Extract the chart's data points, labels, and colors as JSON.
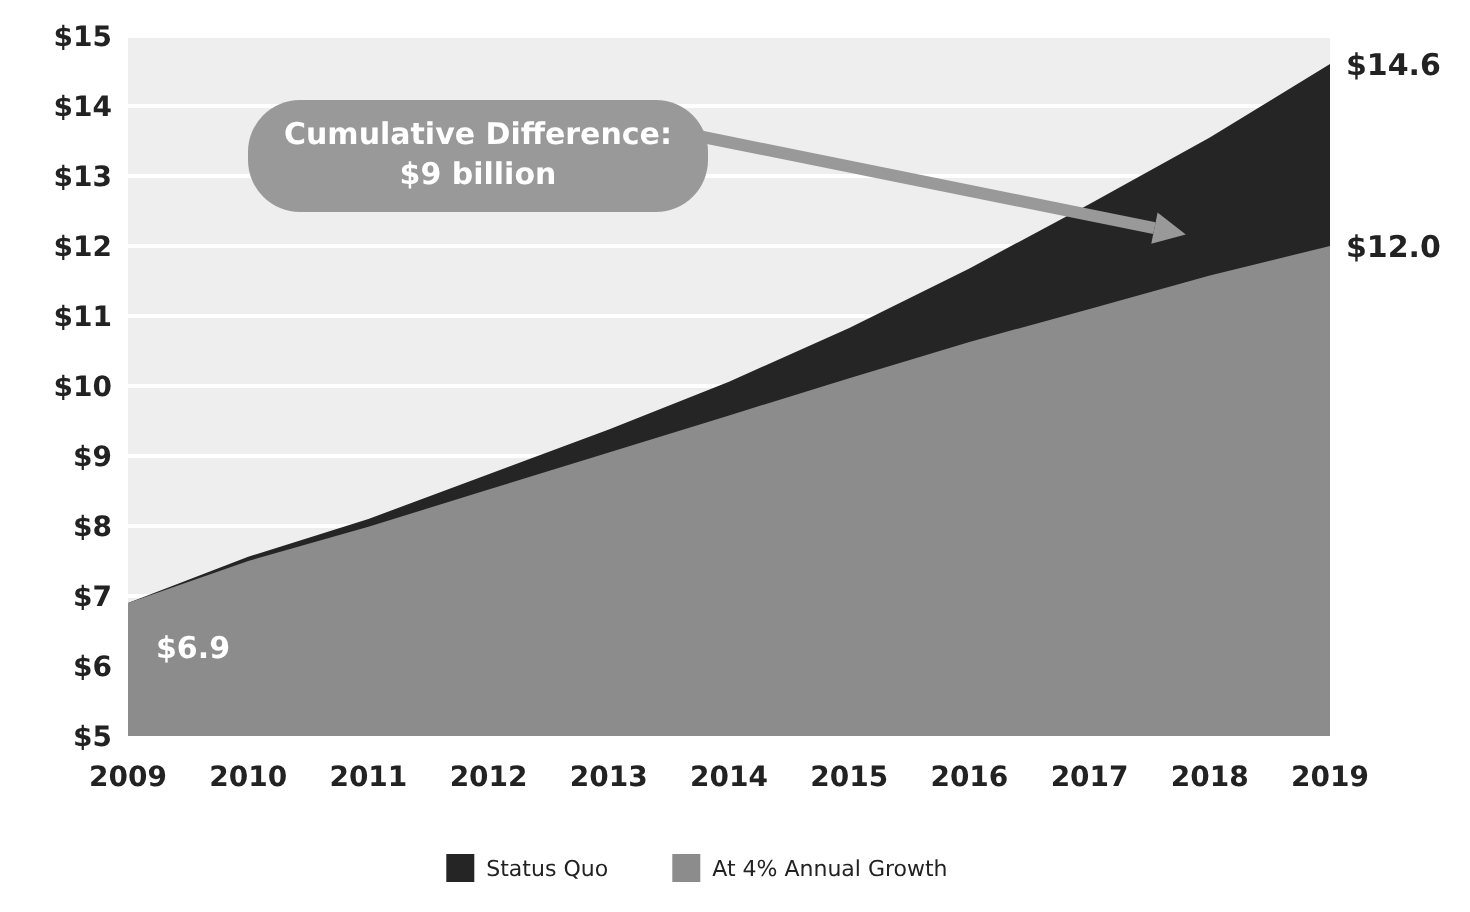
{
  "chart_data": {
    "type": "area",
    "x": [
      2009,
      2010,
      2011,
      2012,
      2013,
      2014,
      2015,
      2016,
      2017,
      2018,
      2019
    ],
    "series": [
      {
        "name": "Status Quo",
        "color": "#252525",
        "values": [
          6.9,
          7.56,
          8.1,
          8.74,
          9.38,
          10.06,
          10.83,
          11.68,
          12.6,
          13.55,
          14.6
        ],
        "value_labels": [
          null,
          null,
          null,
          null,
          null,
          null,
          null,
          null,
          null,
          null,
          "$14.6"
        ]
      },
      {
        "name": "At 4% Annual Growth",
        "color": "#8c8c8c",
        "values": [
          6.9,
          7.5,
          7.99,
          8.52,
          9.05,
          9.58,
          10.11,
          10.63,
          11.1,
          11.58,
          12.0
        ],
        "value_labels": [
          "$6.9",
          null,
          null,
          null,
          null,
          null,
          null,
          null,
          null,
          null,
          "$12.0"
        ]
      }
    ],
    "xlim": [
      2009,
      2019
    ],
    "xticks": [
      2009,
      2010,
      2011,
      2012,
      2013,
      2014,
      2015,
      2016,
      2017,
      2018,
      2019
    ],
    "ylim": [
      5,
      15
    ],
    "yticks": [
      {
        "value": 5,
        "label": "$5"
      },
      {
        "value": 6,
        "label": "$6"
      },
      {
        "value": 7,
        "label": "$7"
      },
      {
        "value": 8,
        "label": "$8"
      },
      {
        "value": 9,
        "label": "$9"
      },
      {
        "value": 10,
        "label": "$10"
      },
      {
        "value": 11,
        "label": "$11"
      },
      {
        "value": 12,
        "label": "$12"
      },
      {
        "value": 13,
        "label": "$13"
      },
      {
        "value": 14,
        "label": "$14"
      },
      {
        "value": 15,
        "label": "$15"
      }
    ],
    "annotations": [
      "Cumulative Difference:\n$9 billion"
    ],
    "grid": "y",
    "legend": "bottom"
  }
}
